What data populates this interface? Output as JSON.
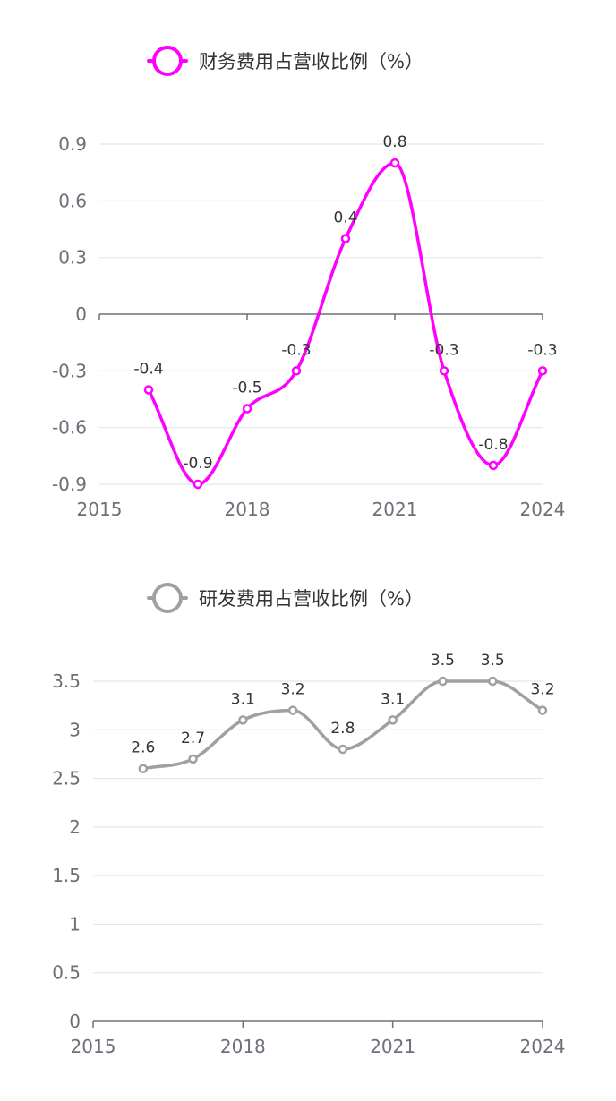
{
  "chart_data": [
    {
      "type": "line",
      "title": "",
      "legend": "财务费用占营收比例（%）",
      "color": "#ff00ff",
      "smooth": true,
      "x": [
        2016,
        2017,
        2018,
        2019,
        2020,
        2021,
        2022,
        2023,
        2024
      ],
      "values": [
        -0.4,
        -0.9,
        -0.5,
        -0.3,
        0.4,
        0.8,
        -0.3,
        -0.8,
        -0.3
      ],
      "data_labels": [
        "-0.4",
        "-0.9",
        "-0.5",
        "-0.3",
        "0.4",
        "0.8",
        "-0.3",
        "-0.8",
        "-0.3"
      ],
      "xlim": [
        2015,
        2024
      ],
      "ylim": [
        -0.9,
        0.9
      ],
      "x_ticks": [
        2015,
        2018,
        2021,
        2024
      ],
      "x_tick_labels": [
        "2015",
        "2018",
        "2021",
        "2024"
      ],
      "y_ticks": [
        0.9,
        0.6,
        0.3,
        0,
        -0.3,
        -0.6,
        -0.9
      ],
      "y_tick_labels": [
        "0.9",
        "0.6",
        "0.3",
        "0",
        "-0.3",
        "-0.6",
        "-0.9"
      ],
      "grid": true,
      "legend_position": "top-center"
    },
    {
      "type": "line",
      "title": "",
      "legend": "研发费用占营收比例（%）",
      "color": "#a0a0a0",
      "smooth": true,
      "x": [
        2016,
        2017,
        2018,
        2019,
        2020,
        2021,
        2022,
        2023,
        2024
      ],
      "values": [
        2.6,
        2.7,
        3.1,
        3.2,
        2.8,
        3.1,
        3.5,
        3.5,
        3.2
      ],
      "data_labels": [
        "2.6",
        "2.7",
        "3.1",
        "3.2",
        "2.8",
        "3.1",
        "3.5",
        "3.5",
        "3.2"
      ],
      "xlim": [
        2015,
        2024
      ],
      "ylim": [
        0,
        3.5
      ],
      "x_ticks": [
        2015,
        2018,
        2021,
        2024
      ],
      "x_tick_labels": [
        "2015",
        "2018",
        "2021",
        "2024"
      ],
      "y_ticks": [
        3.5,
        3,
        2.5,
        2,
        1.5,
        1,
        0.5,
        0
      ],
      "y_tick_labels": [
        "3.5",
        "3",
        "2.5",
        "2",
        "1.5",
        "1",
        "0.5",
        "0"
      ],
      "grid": true,
      "legend_position": "top-center"
    }
  ]
}
